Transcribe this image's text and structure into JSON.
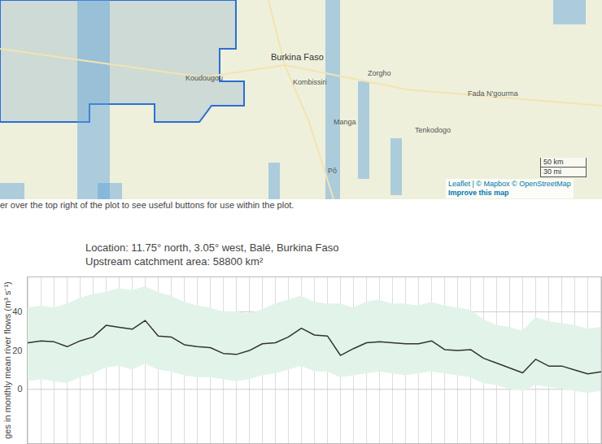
{
  "map": {
    "labels": [
      "Burkina Faso",
      "Koudougou",
      "Kombissiri",
      "Zorgho",
      "Manga",
      "Tenkodogo",
      "Fada N'gourma",
      "Pô"
    ],
    "attribution": "Leaflet | © Mapbox © OpenStreetMap",
    "improve": "Improve this map",
    "scale": [
      "50 km",
      "30 mi"
    ]
  },
  "note": "er over the top right of the plot to see useful buttons for use within the plot.",
  "chart_data": {
    "type": "line",
    "title": "Location: 11.75° north, 3.05° west, Balé, Burkina Faso",
    "subtitle": "Upstream catchment area: 58800 km²",
    "y_label": "ges in monthly mean river flows (m³ s⁻¹)",
    "categories": [
      null,
      null,
      null,
      null,
      null,
      null,
      null,
      null,
      null,
      null,
      null,
      null,
      null,
      null,
      null,
      null,
      null,
      null,
      null,
      null,
      null,
      null,
      null,
      null,
      null,
      null,
      null,
      null,
      null,
      null,
      null,
      null,
      null,
      null,
      null,
      null,
      null,
      null,
      null,
      null,
      null,
      null,
      null,
      null,
      null
    ],
    "series": [
      {
        "type": "area",
        "color": "#e2f4e9",
        "upper": [
          42,
          43,
          42,
          44,
          47,
          49,
          50,
          52,
          51,
          53,
          50,
          48,
          45,
          43,
          42,
          40,
          40,
          39,
          41,
          44,
          46,
          48,
          45,
          44,
          44,
          42,
          45,
          46,
          44,
          44,
          43,
          45,
          43,
          42,
          41,
          36,
          33,
          32,
          30,
          37,
          35,
          34,
          33,
          31,
          32
        ],
        "lower": [
          4,
          5,
          4,
          3,
          6,
          8,
          11,
          12,
          10,
          13,
          10,
          9,
          7,
          6,
          6,
          5,
          4,
          5,
          7,
          8,
          10,
          12,
          9,
          9,
          6,
          7,
          8,
          9,
          8,
          7,
          8,
          9,
          8,
          7,
          6,
          3,
          2,
          0,
          -1,
          2,
          1,
          0,
          -1,
          -2,
          -1
        ]
      },
      {
        "type": "line",
        "color": "#333333",
        "values": [
          24,
          25,
          24.5,
          22,
          25,
          27,
          33,
          32,
          31,
          35.5,
          27.5,
          27,
          23,
          22,
          21.5,
          18.5,
          18,
          20,
          23.5,
          24,
          27,
          31.5,
          28,
          27.5,
          17.5,
          21,
          24,
          24.5,
          24,
          23.5,
          23.5,
          25,
          20.5,
          20,
          20.5,
          16,
          13.5,
          11,
          8.5,
          15.5,
          12,
          12,
          10,
          8,
          9
        ]
      }
    ],
    "ylim": [
      -28,
      58
    ],
    "yticks": [
      0,
      20,
      40
    ],
    "grid": true,
    "tick_labels": "y"
  }
}
